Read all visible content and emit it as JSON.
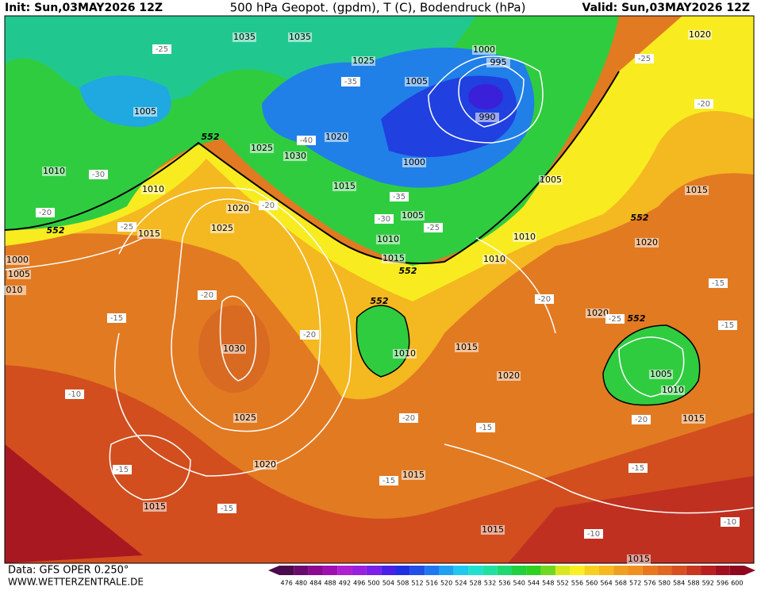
{
  "header": {
    "init": "Init: Sun,03MAY2026 12Z",
    "title": "500 hPa Geopot. (gpdm), T (C), Bodendruck (hPa)",
    "valid": "Valid: Sun,03MAY2026 12Z"
  },
  "isobar_labels": [
    "1035",
    "1035",
    "1025",
    "1000",
    "995",
    "1005",
    "1005",
    "990",
    "1025",
    "1030",
    "1020",
    "1000",
    "1010",
    "1010",
    "1015",
    "1005",
    "1020",
    "1005",
    "1015",
    "1010",
    "1010",
    "1015",
    "1010",
    "1000",
    "1005",
    "010",
    "1025",
    "1020",
    "1030",
    "1010",
    "1015",
    "1020",
    "1020",
    "1005",
    "1010",
    "1025",
    "1015",
    "1020",
    "1015",
    "1015",
    "1015",
    "1015",
    "1020",
    "1015"
  ],
  "temperature_labels": [
    "-25",
    "-25",
    "-35",
    "-20",
    "-40",
    "-30",
    "-20",
    "-25",
    "-20",
    "-35",
    "-30",
    "-25",
    "-20",
    "-15",
    "-20",
    "-20",
    "-25",
    "-15",
    "-15",
    "-10",
    "-20",
    "-15",
    "-20",
    "-15",
    "-15",
    "-15",
    "-15",
    "-10",
    "-10"
  ],
  "geopotential_labels": [
    "552",
    "552",
    "552",
    "552",
    "552",
    "552"
  ],
  "colorbar": {
    "values": [
      476,
      480,
      484,
      488,
      492,
      496,
      500,
      504,
      508,
      512,
      516,
      520,
      524,
      528,
      532,
      536,
      540,
      544,
      548,
      552,
      556,
      560,
      564,
      568,
      572,
      576,
      580,
      584,
      588,
      592,
      596,
      600
    ],
    "colors": [
      "#4b0a4b",
      "#6a0a6e",
      "#8a0a90",
      "#a010b0",
      "#b020d0",
      "#9a20e0",
      "#7a20e8",
      "#4a20e8",
      "#2030e0",
      "#2050e8",
      "#2078f0",
      "#20a0f0",
      "#20c8f0",
      "#20e0d0",
      "#20e0a0",
      "#20d870",
      "#20d040",
      "#30d020",
      "#70d820",
      "#d8e820",
      "#f8f020",
      "#f8d020",
      "#f8b820",
      "#f0a020",
      "#f09020",
      "#e87820",
      "#e06820",
      "#d85020",
      "#c83820",
      "#b82020",
      "#a01020",
      "#900820"
    ]
  },
  "footer": {
    "source": "Data: GFS OPER 0.250°",
    "site": "WWW.WETTERZENTRALE.DE"
  }
}
